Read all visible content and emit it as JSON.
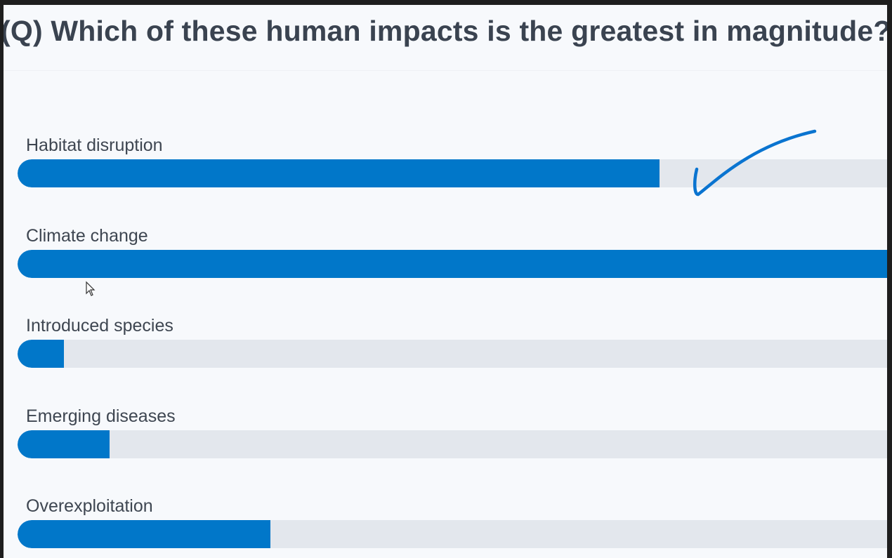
{
  "question": "(Q) Which of these human impacts is the greatest in magnitude?",
  "options": [
    {
      "label": "Habitat disruption",
      "fraction": 0.737
    },
    {
      "label": "Climate change",
      "fraction": 1.0
    },
    {
      "label": "Introduced species",
      "fraction": 0.053
    },
    {
      "label": "Emerging diseases",
      "fraction": 0.106
    },
    {
      "label": "Overexploitation",
      "fraction": 0.29
    }
  ],
  "colors": {
    "bar": "#0177c9",
    "track": "#e3e7ed",
    "annotation": "#0a74d0"
  },
  "annotation_icon": "checkmark-icon"
}
